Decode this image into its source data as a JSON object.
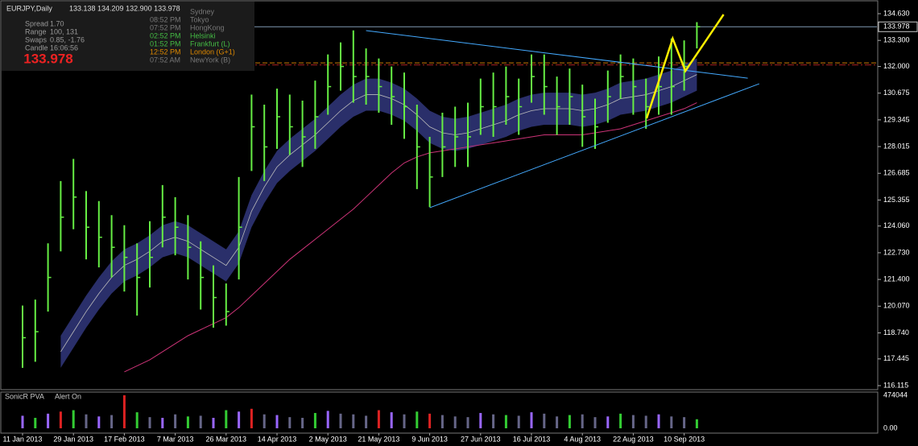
{
  "chart_data": {
    "type": "candlestick",
    "title": "EURJPY,Daily",
    "ohlc_header": "133.138 134.209 132.900 133.978",
    "categories": [
      "11 Jan 2013",
      null,
      null,
      null,
      "29 Jan 2013",
      null,
      null,
      null,
      "17 Feb 2013",
      null,
      null,
      null,
      "7 Mar 2013",
      null,
      null,
      null,
      "26 Mar 2013",
      null,
      null,
      null,
      "14 Apr 2013",
      null,
      null,
      null,
      "2 May 2013",
      null,
      null,
      null,
      "21 May 2013",
      null,
      null,
      null,
      "9 Jun 2013",
      null,
      null,
      null,
      "27 Jun 2013",
      null,
      null,
      null,
      "16 Jul 2013",
      null,
      null,
      null,
      "4 Aug 2013",
      null,
      null,
      null,
      "22 Aug 2013",
      null,
      null,
      null,
      "10 Sep 2013",
      null
    ],
    "high": [
      120.1,
      120.4,
      123.2,
      126.3,
      127.4,
      125.8,
      125.3,
      124.6,
      124.1,
      123.2,
      124.3,
      126.1,
      125.5,
      124.6,
      123.3,
      122.1,
      121.2,
      126.5,
      130.6,
      130.1,
      130.9,
      130.6,
      130.3,
      131.3,
      132.6,
      133.2,
      133.8,
      132.9,
      132.4,
      132.0,
      131.7,
      130.1,
      128.5,
      129.7,
      130.0,
      130.2,
      131.4,
      131.7,
      132.0,
      131.4,
      132.6,
      132.6,
      131.5,
      131.9,
      131.1,
      130.4,
      131.8,
      132.6,
      132.4,
      131.4,
      132.5,
      133.4,
      133.3,
      134.209
    ],
    "low": [
      117.0,
      117.3,
      119.8,
      122.8,
      123.9,
      122.4,
      122.0,
      121.5,
      120.8,
      119.6,
      121.0,
      123.0,
      122.6,
      121.4,
      119.9,
      119.0,
      119.1,
      121.4,
      126.8,
      126.3,
      127.9,
      127.6,
      127.0,
      127.9,
      129.6,
      130.8,
      130.2,
      130.1,
      129.7,
      129.1,
      128.4,
      125.9,
      125.0,
      126.5,
      127.0,
      127.0,
      128.6,
      128.5,
      129.1,
      128.6,
      130.2,
      129.6,
      128.6,
      129.1,
      128.0,
      127.9,
      129.2,
      130.4,
      129.6,
      128.9,
      129.6,
      129.6,
      130.8,
      132.9
    ],
    "close": [
      118.5,
      118.8,
      121.5,
      124.5,
      125.5,
      124,
      123.5,
      123,
      122.5,
      121.5,
      122.5,
      124.5,
      124,
      123,
      121.5,
      120.5,
      119.8,
      124,
      129,
      128,
      129.5,
      129,
      128.5,
      129.5,
      131,
      132,
      131.5,
      131.5,
      131,
      130.5,
      130,
      128,
      126.5,
      128,
      128.5,
      128.5,
      130,
      130,
      130.5,
      130,
      131.5,
      131,
      130,
      130.5,
      129.5,
      129,
      130.5,
      131.5,
      131,
      130,
      131,
      131,
      132,
      133.978
    ],
    "color": "#66ee44",
    "dragon": {
      "color": "#2a2f6a",
      "mid_color": "#bbbbbb",
      "half_width": 0.8,
      "values": [
        null,
        null,
        null,
        117.8,
        118.8,
        119.8,
        120.7,
        121.5,
        122.1,
        122.4,
        122.8,
        123.3,
        123.5,
        123.3,
        122.9,
        122.5,
        122.1,
        123.0,
        124.8,
        126.0,
        127.0,
        127.6,
        128.1,
        128.6,
        129.2,
        129.8,
        130.3,
        130.6,
        130.6,
        130.4,
        130.1,
        129.6,
        129.0,
        128.7,
        128.6,
        128.7,
        128.9,
        129.1,
        129.3,
        129.6,
        129.8,
        129.9,
        129.9,
        129.9,
        129.8,
        129.9,
        130.1,
        130.4,
        130.5,
        130.6,
        130.8,
        131.0,
        131.3,
        131.6
      ]
    },
    "ema": {
      "color": "#cc3377",
      "values": [
        null,
        null,
        null,
        null,
        null,
        null,
        null,
        null,
        116.8,
        117.1,
        117.4,
        117.8,
        118.2,
        118.6,
        118.9,
        119.2,
        119.5,
        120.0,
        120.6,
        121.2,
        121.8,
        122.4,
        122.9,
        123.4,
        123.9,
        124.4,
        124.9,
        125.5,
        126.1,
        126.7,
        127.2,
        127.5,
        127.7,
        127.8,
        127.9,
        128.0,
        128.1,
        128.2,
        128.3,
        128.4,
        128.5,
        128.6,
        128.6,
        128.6,
        128.6,
        128.7,
        128.8,
        128.9,
        129.1,
        129.3,
        129.5,
        129.7,
        129.9,
        130.2
      ]
    },
    "trendlines": {
      "color": "#44aaff",
      "lines": [
        {
          "x": [
            27,
            57
          ],
          "y": [
            133.79,
            131.42
          ]
        },
        {
          "x": [
            32,
            57.9
          ],
          "y": [
            124.97,
            131.14
          ]
        }
      ]
    },
    "zigzag": {
      "color": "#ffee00",
      "x": [
        49.05,
        51.1,
        52.1,
        55.1
      ],
      "y": [
        129.42,
        133.39,
        131.78,
        134.59
      ]
    },
    "levels": [
      {
        "value": 133.978,
        "color": "#7f97b2"
      },
      {
        "value": 132.18,
        "color": "#cc7a00"
      },
      {
        "value": 132.08,
        "color": "#aa2222"
      }
    ],
    "price_tag": {
      "value": 133.978,
      "label": "133.978"
    },
    "ylim": [
      116.115,
      134.63
    ],
    "yticks": [
      {
        "value": 134.63,
        "label": "134.630"
      },
      {
        "value": 133.3,
        "label": "133.300"
      },
      {
        "value": 132,
        "label": "132.000"
      },
      {
        "value": 130.675,
        "label": "130.675"
      },
      {
        "value": 129.345,
        "label": "129.345"
      },
      {
        "value": 128.015,
        "label": "128.015"
      },
      {
        "value": 126.685,
        "label": "126.685"
      },
      {
        "value": 125.355,
        "label": "125.355"
      },
      {
        "value": 124.06,
        "label": "124.060"
      },
      {
        "value": 122.73,
        "label": "122.730"
      },
      {
        "value": 121.4,
        "label": "121.400"
      },
      {
        "value": 120.07,
        "label": "120.070"
      },
      {
        "value": 118.74,
        "label": "118.740"
      },
      {
        "value": 117.445,
        "label": "117.445"
      },
      {
        "value": 116.115,
        "label": "116.115"
      }
    ],
    "volume": {
      "title": "SonicR PVA",
      "alert": "Alert On",
      "ylim": [
        0,
        474044
      ],
      "yticks": [
        474044,
        {
          "value": 0,
          "label": "0.00"
        }
      ],
      "values": [
        180000,
        150000,
        210000,
        240000,
        260000,
        200000,
        170000,
        190000,
        474044,
        230000,
        160000,
        150000,
        200000,
        170000,
        180000,
        150000,
        260000,
        240000,
        280000,
        200000,
        190000,
        160000,
        150000,
        220000,
        250000,
        210000,
        200000,
        180000,
        260000,
        230000,
        200000,
        240000,
        210000,
        190000,
        170000,
        160000,
        220000,
        200000,
        190000,
        180000,
        230000,
        210000,
        170000,
        190000,
        200000,
        160000,
        170000,
        210000,
        190000,
        180000,
        200000,
        170000,
        160000,
        130000
      ],
      "colors": [
        "#9966ff",
        "#33cc33",
        "#9966ff",
        "#dd2222",
        "#33cc33",
        "#666688",
        "#9966ff",
        "#666688",
        "#dd2222",
        "#33cc33",
        "#666688",
        "#9966ff",
        "#666688",
        "#33cc33",
        "#666688",
        "#9966ff",
        "#33cc33",
        "#9966ff",
        "#dd2222",
        "#666688",
        "#9966ff",
        "#666688",
        "#666688",
        "#33cc33",
        "#9966ff",
        "#666688",
        "#666688",
        "#666688",
        "#dd2222",
        "#9966ff",
        "#666688",
        "#33cc33",
        "#dd2222",
        "#666688",
        "#666688",
        "#666688",
        "#9966ff",
        "#666688",
        "#33cc33",
        "#666688",
        "#9966ff",
        "#666688",
        "#666688",
        "#33cc33",
        "#666688",
        "#666688",
        "#9966ff",
        "#33cc33",
        "#666688",
        "#666688",
        "#9966ff",
        "#666688",
        "#666688",
        "#33cc33"
      ]
    }
  },
  "info_panel": {
    "rows": [
      [
        "Spread",
        "1.70"
      ],
      [
        "Range",
        "100, 131"
      ],
      [
        "Swaps",
        "0.85, -1.76"
      ],
      [
        "Candle",
        "16:06:56"
      ]
    ],
    "price": "133.978",
    "sessions": [
      {
        "time": null,
        "name": "Sydney",
        "color": "#777777"
      },
      {
        "time": "08:52 PM",
        "name": "Tokyo",
        "color": "#777777"
      },
      {
        "time": "07:52 PM",
        "name": "HongKong",
        "color": "#777777"
      },
      {
        "time": "02:52 PM",
        "name": "Helsinki",
        "color": "#44bb44"
      },
      {
        "time": "01:52 PM",
        "name": "Frankfurt  (L)",
        "color": "#44bb44"
      },
      {
        "time": "12:52 PM",
        "name": "London  (G+1)",
        "color": "#dd8800"
      },
      {
        "time": "07:52 AM",
        "name": "NewYork  (B)",
        "color": "#777777"
      }
    ]
  }
}
